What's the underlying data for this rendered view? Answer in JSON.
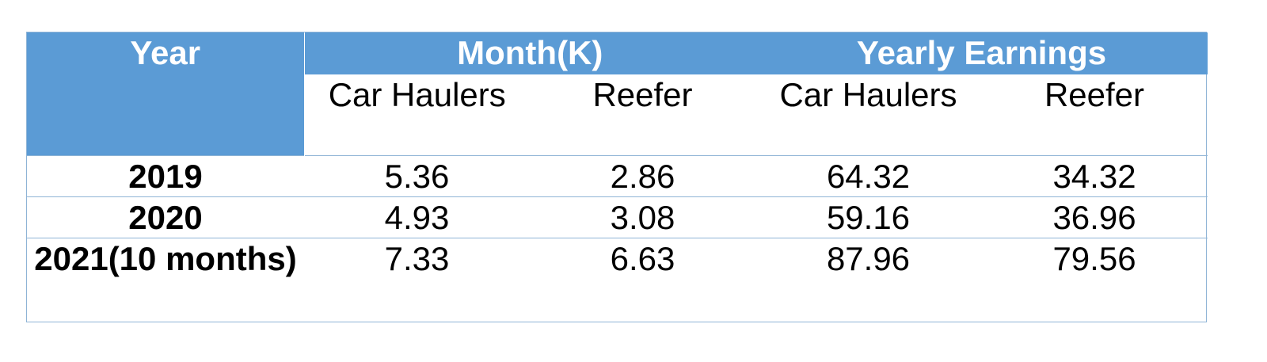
{
  "table": {
    "header": {
      "year": "Year",
      "month_group": "Month(K)",
      "yearly_group": "Yearly Earnings",
      "sub_columns": [
        "Car Haulers",
        "Reefer",
        "Car Haulers",
        "Reefer"
      ]
    },
    "rows": [
      {
        "year": "2019",
        "values": [
          "5.36",
          "2.86",
          "64.32",
          "34.32"
        ]
      },
      {
        "year": "2020",
        "values": [
          "4.93",
          "3.08",
          "59.16",
          "36.96"
        ]
      },
      {
        "year": "2021(10 months)",
        "values": [
          "7.33",
          "6.63",
          "87.96",
          "79.56"
        ]
      }
    ]
  },
  "colors": {
    "header_bg": "#5b9bd5",
    "header_text": "#ffffff",
    "border": "#8fb4d6"
  }
}
